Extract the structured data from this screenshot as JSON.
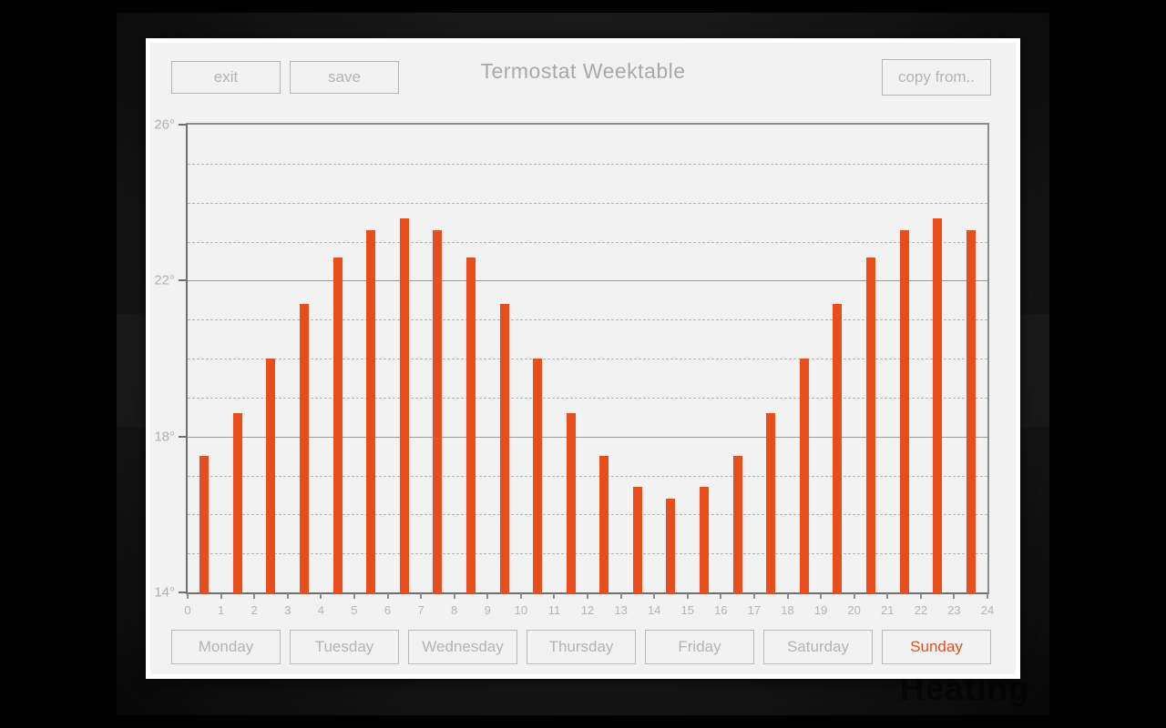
{
  "window": {
    "title": "Termostat Weektable"
  },
  "toolbar": {
    "exit_label": "exit",
    "save_label": "save",
    "copy_from_label": "copy from.."
  },
  "chart_data": {
    "type": "bar",
    "title": "Termostat Weektable",
    "x": [
      0,
      1,
      2,
      3,
      4,
      5,
      6,
      7,
      8,
      9,
      10,
      11,
      12,
      13,
      14,
      15,
      16,
      17,
      18,
      19,
      20,
      21,
      22,
      23
    ],
    "values": [
      17.5,
      18.6,
      20.0,
      21.4,
      22.6,
      23.3,
      23.6,
      23.3,
      22.6,
      21.4,
      20.0,
      18.6,
      17.5,
      16.7,
      16.4,
      16.7,
      17.5,
      18.6,
      20.0,
      21.4,
      22.6,
      23.3,
      23.6,
      23.3
    ],
    "xlabel": "",
    "ylabel": "",
    "ylim": [
      14,
      26
    ],
    "xlim": [
      0,
      24
    ],
    "x_tick_labels": [
      "0",
      "1",
      "2",
      "3",
      "4",
      "5",
      "6",
      "7",
      "8",
      "9",
      "10",
      "11",
      "12",
      "13",
      "14",
      "15",
      "16",
      "17",
      "18",
      "19",
      "20",
      "21",
      "22",
      "23",
      "24"
    ],
    "y_ticks": [
      26,
      22,
      18,
      14
    ],
    "y_tick_labels": [
      "26°",
      "22°",
      "18°",
      "14°"
    ],
    "solid_gridlines": [
      22,
      18
    ],
    "dashed_gridlines": [
      25,
      24,
      23,
      21,
      20,
      19,
      17,
      16,
      15
    ],
    "grid": "on",
    "legend": "none",
    "bar_color": "#e84e1b"
  },
  "days": [
    {
      "label": "Monday",
      "active": false
    },
    {
      "label": "Tuesday",
      "active": false
    },
    {
      "label": "Wednesday",
      "active": false
    },
    {
      "label": "Thursday",
      "active": false
    },
    {
      "label": "Friday",
      "active": false
    },
    {
      "label": "Saturday",
      "active": false
    },
    {
      "label": "Sunday",
      "active": true
    }
  ],
  "colors": {
    "accent": "#e84e1b",
    "panel_background": "#f2f2f2",
    "muted_text": "#b3b3b3",
    "desktop_background": "#1a1a1a"
  },
  "watermark": {
    "text": "Heating"
  }
}
